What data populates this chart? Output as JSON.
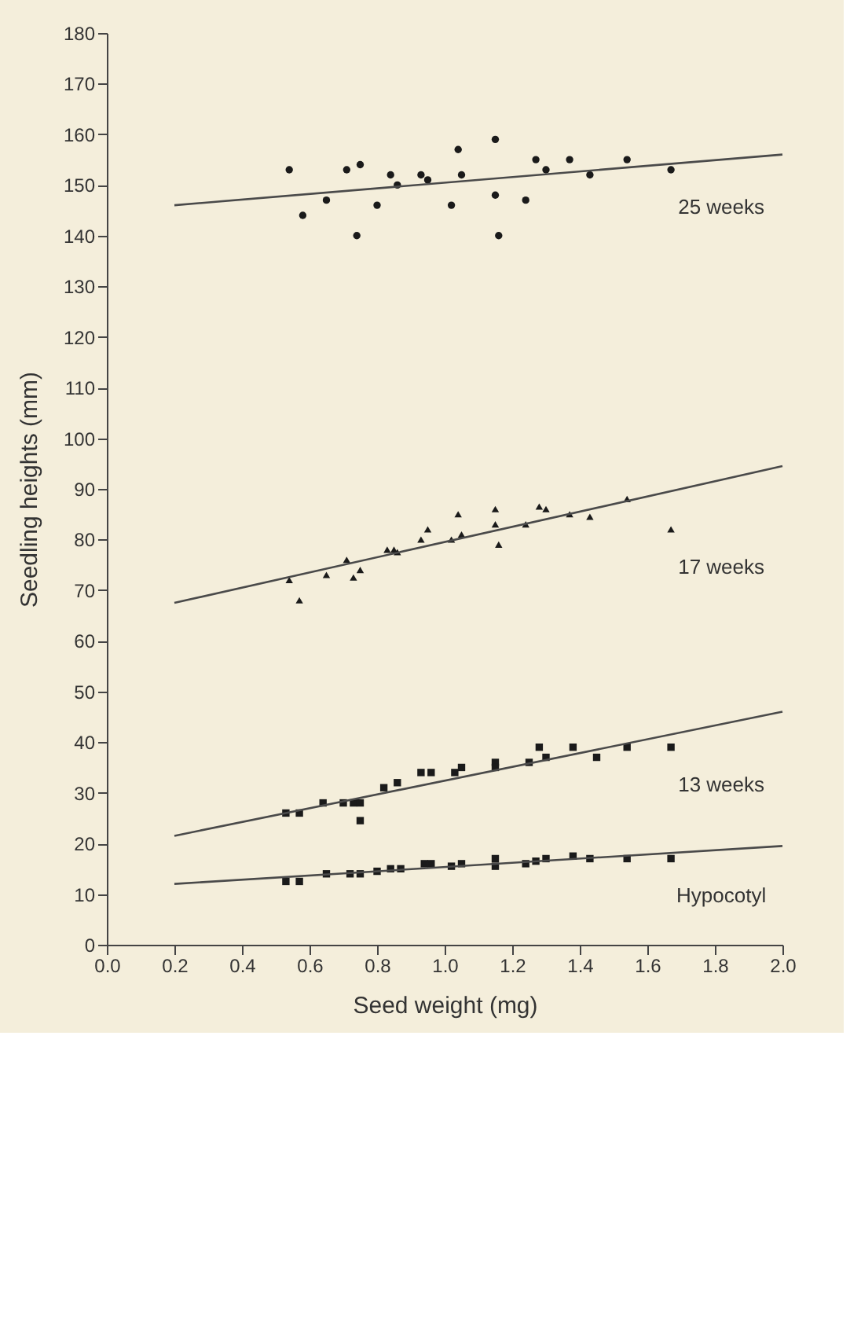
{
  "chart_data": {
    "type": "scatter",
    "xlabel": "Seed weight (mg)",
    "ylabel": "Seedling heights  (mm)",
    "xlim": [
      0,
      2
    ],
    "xticks": [
      {
        "value": 0,
        "label": "0.0"
      },
      {
        "value": 0.2,
        "label": "0.2"
      },
      {
        "value": 0.4,
        "label": "0.4"
      },
      {
        "value": 0.6,
        "label": "0.6"
      },
      {
        "value": 0.8,
        "label": "0.8"
      },
      {
        "value": 1,
        "label": "1.0"
      },
      {
        "value": 1.2,
        "label": "1.2"
      },
      {
        "value": 1.4,
        "label": "1.4"
      },
      {
        "value": 1.6,
        "label": "1.6"
      },
      {
        "value": 1.8,
        "label": "1.8"
      },
      {
        "value": 2,
        "label": "2.0"
      }
    ],
    "ylim": [
      0,
      180
    ],
    "yticks": [
      0,
      10,
      20,
      30,
      40,
      50,
      60,
      70,
      80,
      90,
      100,
      110,
      120,
      130,
      140,
      150,
      160,
      170,
      180
    ],
    "grid": false,
    "legend": false,
    "series": [
      {
        "name": "25 weeks",
        "type": "scatter",
        "marker": "circle",
        "color": "#1a1a1a",
        "x": [
          0.54,
          0.58,
          0.65,
          0.71,
          0.74,
          0.75,
          0.8,
          0.84,
          0.86,
          0.93,
          0.95,
          1.02,
          1.04,
          1.05,
          1.15,
          1.15,
          1.16,
          1.24,
          1.27,
          1.3,
          1.37,
          1.43,
          1.54,
          1.67
        ],
        "values": [
          153,
          144,
          147,
          153,
          140,
          154,
          146,
          152,
          150,
          152,
          151,
          146,
          157,
          152,
          159,
          148,
          140,
          147,
          155,
          153,
          155,
          152,
          155,
          153
        ]
      },
      {
        "type": "line",
        "line_style": "solid",
        "color": "#4a4a4a",
        "x": [
          0.2,
          2.0
        ],
        "values": [
          146,
          156
        ]
      },
      {
        "name": "17 weeks",
        "type": "scatter",
        "marker": "triangle",
        "color": "#1a1a1a",
        "x": [
          0.54,
          0.57,
          0.65,
          0.71,
          0.73,
          0.75,
          0.83,
          0.85,
          0.86,
          0.93,
          0.95,
          1.02,
          1.04,
          1.05,
          1.15,
          1.15,
          1.16,
          1.24,
          1.28,
          1.3,
          1.37,
          1.43,
          1.54,
          1.67
        ],
        "values": [
          72,
          68,
          73,
          76,
          72.5,
          74,
          78,
          78,
          77.5,
          80,
          82,
          80,
          85,
          81,
          86,
          83,
          79,
          83,
          86.5,
          86,
          85,
          84.5,
          88,
          82
        ]
      },
      {
        "type": "line",
        "line_style": "solid",
        "color": "#4a4a4a",
        "x": [
          0.2,
          2.0
        ],
        "values": [
          67.5,
          94.5
        ]
      },
      {
        "name": "13 weeks",
        "type": "scatter",
        "marker": "square",
        "color": "#1a1a1a",
        "x": [
          0.53,
          0.57,
          0.64,
          0.7,
          0.73,
          0.75,
          0.75,
          0.82,
          0.86,
          0.93,
          0.96,
          1.03,
          1.05,
          1.15,
          1.15,
          1.25,
          1.28,
          1.3,
          1.38,
          1.45,
          1.54,
          1.67
        ],
        "values": [
          26,
          26,
          28,
          28,
          28,
          24.5,
          28,
          31,
          32,
          34,
          34,
          34,
          35,
          36,
          35,
          36,
          39,
          37,
          39,
          37,
          39,
          39
        ]
      },
      {
        "type": "line",
        "line_style": "solid",
        "color": "#4a4a4a",
        "x": [
          0.2,
          2.0
        ],
        "values": [
          21.5,
          46
        ]
      },
      {
        "name": "Hypocotyl",
        "type": "scatter",
        "marker": "square",
        "color": "#1a1a1a",
        "x": [
          0.53,
          0.57,
          0.65,
          0.72,
          0.75,
          0.8,
          0.84,
          0.87,
          0.94,
          0.96,
          1.02,
          1.05,
          1.15,
          1.15,
          1.24,
          1.27,
          1.3,
          1.38,
          1.43,
          1.54,
          1.67
        ],
        "values": [
          12.5,
          12.5,
          14,
          14,
          14,
          14.5,
          15,
          15,
          16,
          16,
          15.5,
          16,
          17,
          15.5,
          16,
          16.5,
          17,
          17.5,
          17,
          17,
          17
        ]
      },
      {
        "type": "line",
        "line_style": "solid",
        "color": "#4a4a4a",
        "x": [
          0.2,
          2.0
        ],
        "values": [
          12,
          19.5
        ]
      }
    ]
  }
}
